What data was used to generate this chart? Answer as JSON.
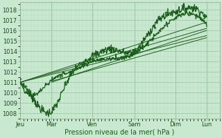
{
  "bg_color": "#c8e8d0",
  "grid_color_major": "#a0c8a8",
  "grid_color_minor": "#b8dcc0",
  "line_color": "#1a5c1a",
  "ylabel": "Pression niveau de la mer( hPa )",
  "ylim": [
    1007.5,
    1018.7
  ],
  "yticks": [
    1008,
    1009,
    1010,
    1011,
    1012,
    1013,
    1014,
    1015,
    1016,
    1017,
    1018
  ],
  "x_day_labels": [
    "Jeu",
    "Mar",
    "Ven",
    "Sam",
    "Dim",
    "Lun"
  ],
  "x_day_positions": [
    0,
    0.85,
    1.95,
    3.1,
    4.2,
    5.05
  ],
  "xlim": [
    0,
    5.4
  ],
  "label_fontsize": 7.0,
  "tick_fontsize": 6.0
}
